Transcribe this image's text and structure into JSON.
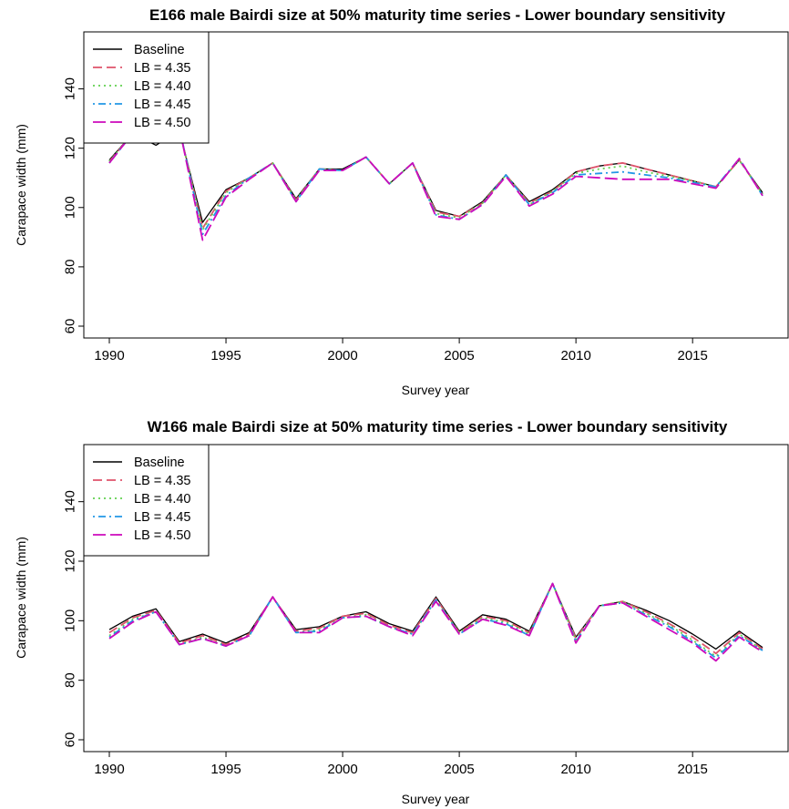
{
  "chart_data": [
    {
      "type": "line",
      "title": "E166 male Bairdi size at 50% maturity time series - Lower boundary sensitivity",
      "xlabel": "Survey year",
      "ylabel": "Carapace width (mm)",
      "xlim": [
        1990,
        2018
      ],
      "ylim": [
        60,
        150
      ],
      "xticks": [
        "1990",
        "1995",
        "2000",
        "2005",
        "2010",
        "2015"
      ],
      "yticks": [
        "60",
        "80",
        "100",
        "120",
        "140"
      ],
      "grid": false,
      "legend_position": "top-left",
      "x": [
        1990,
        1991,
        1992,
        1993,
        1994,
        1995,
        1996,
        1997,
        1998,
        1999,
        2000,
        2001,
        2002,
        2003,
        2004,
        2005,
        2006,
        2007,
        2008,
        2009,
        2010,
        2011,
        2012,
        2013,
        2014,
        2015,
        2016,
        2017,
        2018
      ],
      "series": [
        {
          "name": "Baseline",
          "color": "#000000",
          "dash": "solid",
          "values": [
            116,
            125,
            121,
            126,
            95,
            106,
            110,
            115,
            103,
            113,
            113,
            117,
            108,
            115,
            99,
            97,
            102,
            111,
            102,
            106,
            112,
            114,
            115,
            113,
            111,
            109,
            107,
            116,
            105
          ]
        },
        {
          "name": "LB = 4.35",
          "color": "#DF536B",
          "dash": "dashed",
          "values": [
            115.5,
            125,
            122,
            126.5,
            93,
            105.5,
            110,
            115,
            102.5,
            113,
            112.5,
            117,
            108,
            115,
            98.5,
            97,
            101.5,
            111,
            101.5,
            105.5,
            112,
            114,
            115,
            113,
            111,
            109,
            107,
            116,
            104.5
          ]
        },
        {
          "name": "LB = 4.40",
          "color": "#61D04F",
          "dash": "dotted",
          "values": [
            115.5,
            125,
            122.5,
            126.5,
            92.5,
            105,
            110,
            115,
            102.5,
            113,
            112.5,
            117,
            108,
            115,
            98,
            96.5,
            101.5,
            111,
            101,
            105.5,
            111.5,
            113,
            114,
            112,
            110.5,
            109,
            107,
            116,
            104.5
          ]
        },
        {
          "name": "LB = 4.45",
          "color": "#2297E6",
          "dash": "dotdash",
          "values": [
            115,
            125,
            123,
            127,
            91,
            104,
            110,
            115,
            102,
            113,
            112.5,
            117,
            108,
            115,
            97.5,
            96,
            101,
            111,
            101,
            105,
            111,
            111.5,
            112,
            111,
            110,
            108.5,
            107,
            116.5,
            104
          ]
        },
        {
          "name": "LB = 4.50",
          "color": "#CD0BBC",
          "dash": "longdash",
          "values": [
            115,
            125,
            123,
            127,
            89,
            103.5,
            109.5,
            115,
            102,
            112.5,
            112.5,
            117,
            108,
            115,
            97,
            96,
            101,
            110.5,
            100.5,
            104.5,
            110.5,
            110,
            109.5,
            109.5,
            109.5,
            108,
            106.5,
            116.5,
            104
          ]
        }
      ]
    },
    {
      "type": "line",
      "title": "W166 male Bairdi size at 50% maturity time series - Lower boundary sensitivity",
      "xlabel": "Survey year",
      "ylabel": "Carapace width (mm)",
      "xlim": [
        1990,
        2018
      ],
      "ylim": [
        60,
        150
      ],
      "xticks": [
        "1990",
        "1995",
        "2000",
        "2005",
        "2010",
        "2015"
      ],
      "yticks": [
        "60",
        "80",
        "100",
        "120",
        "140"
      ],
      "grid": false,
      "legend_position": "top-left",
      "x": [
        1990,
        1991,
        1992,
        1993,
        1994,
        1995,
        1996,
        1997,
        1998,
        1999,
        2000,
        2001,
        2002,
        2003,
        2004,
        2005,
        2006,
        2007,
        2008,
        2009,
        2010,
        2011,
        2012,
        2013,
        2014,
        2015,
        2016,
        2017,
        2018
      ],
      "series": [
        {
          "name": "Baseline",
          "color": "#000000",
          "dash": "solid",
          "values": [
            97,
            101.5,
            104,
            93,
            95.5,
            92.5,
            96,
            108,
            97,
            98,
            101.5,
            103,
            99,
            96.5,
            108,
            96.5,
            102,
            100.5,
            96.5,
            112.5,
            94.5,
            105,
            106.5,
            103.5,
            100,
            95.5,
            90.5,
            96.5,
            91
          ]
        },
        {
          "name": "LB = 4.35",
          "color": "#DF536B",
          "dash": "dashed",
          "values": [
            96,
            101,
            103.5,
            92.5,
            95,
            92,
            95.5,
            108,
            96.5,
            97.5,
            101.5,
            102.5,
            98.5,
            96,
            107.5,
            96,
            101.5,
            100,
            96,
            112.5,
            94,
            105,
            106.5,
            103,
            99,
            94.5,
            89,
            96,
            90.5
          ]
        },
        {
          "name": "LB = 4.40",
          "color": "#61D04F",
          "dash": "dotted",
          "values": [
            95,
            100.5,
            103,
            92,
            94.5,
            91.5,
            95,
            108,
            96,
            97,
            101,
            102,
            98,
            95.5,
            107,
            96,
            101,
            99.5,
            95.5,
            112.5,
            93.5,
            105,
            106.5,
            102.5,
            98.5,
            93.5,
            88,
            95.5,
            90
          ]
        },
        {
          "name": "LB = 4.45",
          "color": "#2297E6",
          "dash": "dotdash",
          "values": [
            94.5,
            100,
            103,
            92,
            94,
            91.5,
            95,
            108,
            96,
            96.5,
            101,
            101.5,
            98,
            95.5,
            107,
            95.5,
            100.5,
            99,
            95,
            112.5,
            93,
            105,
            106,
            102,
            98,
            93,
            87.5,
            95,
            90
          ]
        },
        {
          "name": "LB = 4.50",
          "color": "#CD0BBC",
          "dash": "longdash",
          "values": [
            94,
            99.5,
            103,
            92,
            94,
            91.5,
            95,
            108,
            96,
            96,
            101,
            101.5,
            98,
            95,
            106.5,
            95.5,
            100.5,
            98.5,
            95,
            112.5,
            92.5,
            105,
            106,
            101.5,
            97,
            92.5,
            86.5,
            94.5,
            89.5
          ]
        }
      ]
    }
  ]
}
